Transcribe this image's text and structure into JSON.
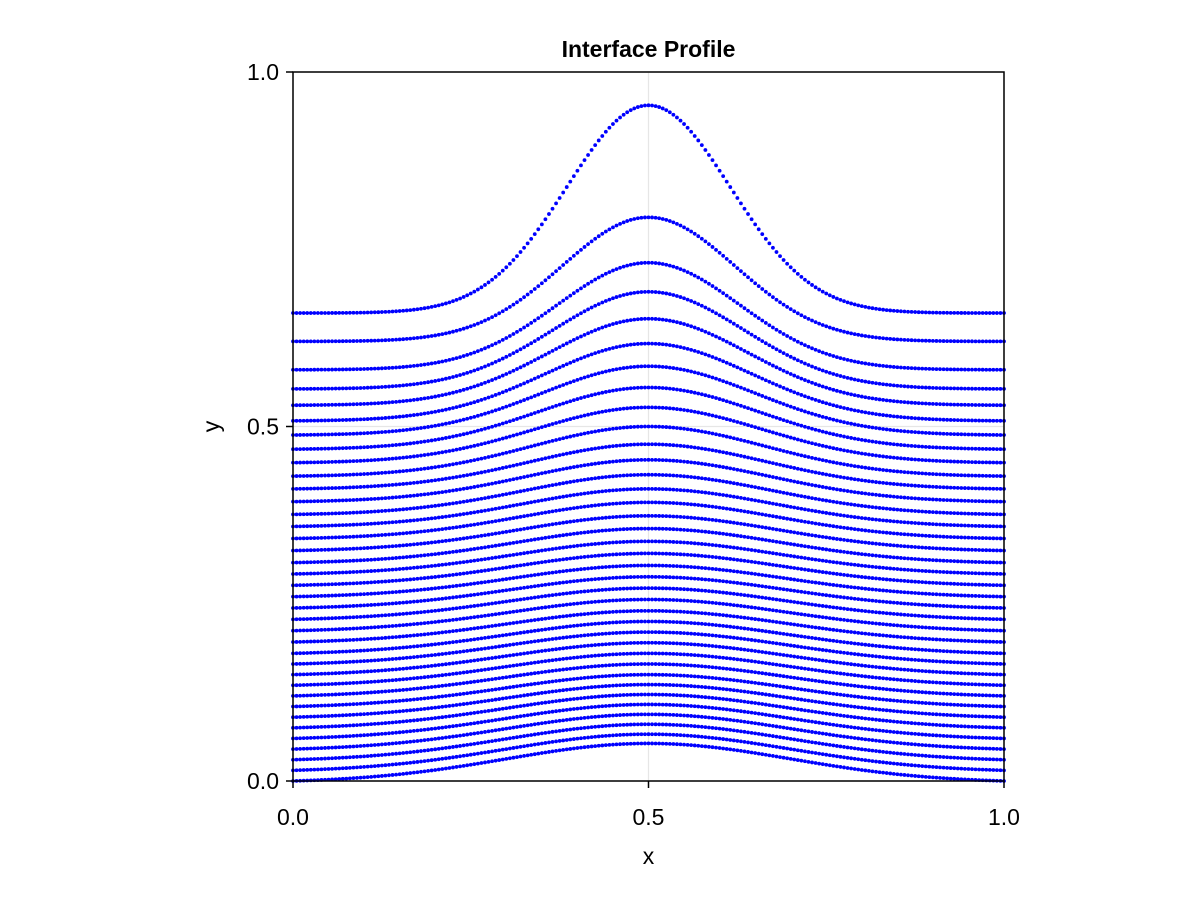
{
  "chart_data": {
    "type": "scatter",
    "title": "Interface Profile",
    "xlabel": "x",
    "ylabel": "y",
    "xlim": [
      0.0,
      1.0
    ],
    "ylim": [
      0.0,
      1.0
    ],
    "x_ticks": [
      "0.0",
      "0.5",
      "1.0"
    ],
    "y_ticks": [
      "0.0",
      "0.5",
      "1.0"
    ],
    "grid": true,
    "marker_color": "#0000ff",
    "points_per_curve": 201,
    "curve_shape": "peaked bump centered at x = 0.5",
    "x_peak": 0.5,
    "curves": [
      {
        "edge": 0.0,
        "peak": 0.053
      },
      {
        "edge": 0.015,
        "peak": 0.066
      },
      {
        "edge": 0.03,
        "peak": 0.08
      },
      {
        "edge": 0.045,
        "peak": 0.094
      },
      {
        "edge": 0.06,
        "peak": 0.108
      },
      {
        "edge": 0.075,
        "peak": 0.122
      },
      {
        "edge": 0.09,
        "peak": 0.136
      },
      {
        "edge": 0.105,
        "peak": 0.15
      },
      {
        "edge": 0.12,
        "peak": 0.165
      },
      {
        "edge": 0.135,
        "peak": 0.18
      },
      {
        "edge": 0.15,
        "peak": 0.195
      },
      {
        "edge": 0.165,
        "peak": 0.21
      },
      {
        "edge": 0.18,
        "peak": 0.225
      },
      {
        "edge": 0.196,
        "peak": 0.24
      },
      {
        "edge": 0.212,
        "peak": 0.256
      },
      {
        "edge": 0.228,
        "peak": 0.272
      },
      {
        "edge": 0.244,
        "peak": 0.288
      },
      {
        "edge": 0.26,
        "peak": 0.304
      },
      {
        "edge": 0.276,
        "peak": 0.321
      },
      {
        "edge": 0.292,
        "peak": 0.338
      },
      {
        "edge": 0.308,
        "peak": 0.356
      },
      {
        "edge": 0.325,
        "peak": 0.374
      },
      {
        "edge": 0.342,
        "peak": 0.393
      },
      {
        "edge": 0.359,
        "peak": 0.412
      },
      {
        "edge": 0.376,
        "peak": 0.432
      },
      {
        "edge": 0.394,
        "peak": 0.453
      },
      {
        "edge": 0.412,
        "peak": 0.475
      },
      {
        "edge": 0.43,
        "peak": 0.5
      },
      {
        "edge": 0.449,
        "peak": 0.527
      },
      {
        "edge": 0.468,
        "peak": 0.555
      },
      {
        "edge": 0.488,
        "peak": 0.585
      },
      {
        "edge": 0.508,
        "peak": 0.617
      },
      {
        "edge": 0.53,
        "peak": 0.652
      },
      {
        "edge": 0.553,
        "peak": 0.69
      },
      {
        "edge": 0.58,
        "peak": 0.731
      },
      {
        "edge": 0.62,
        "peak": 0.795
      },
      {
        "edge": 0.66,
        "peak": 0.953
      }
    ]
  }
}
